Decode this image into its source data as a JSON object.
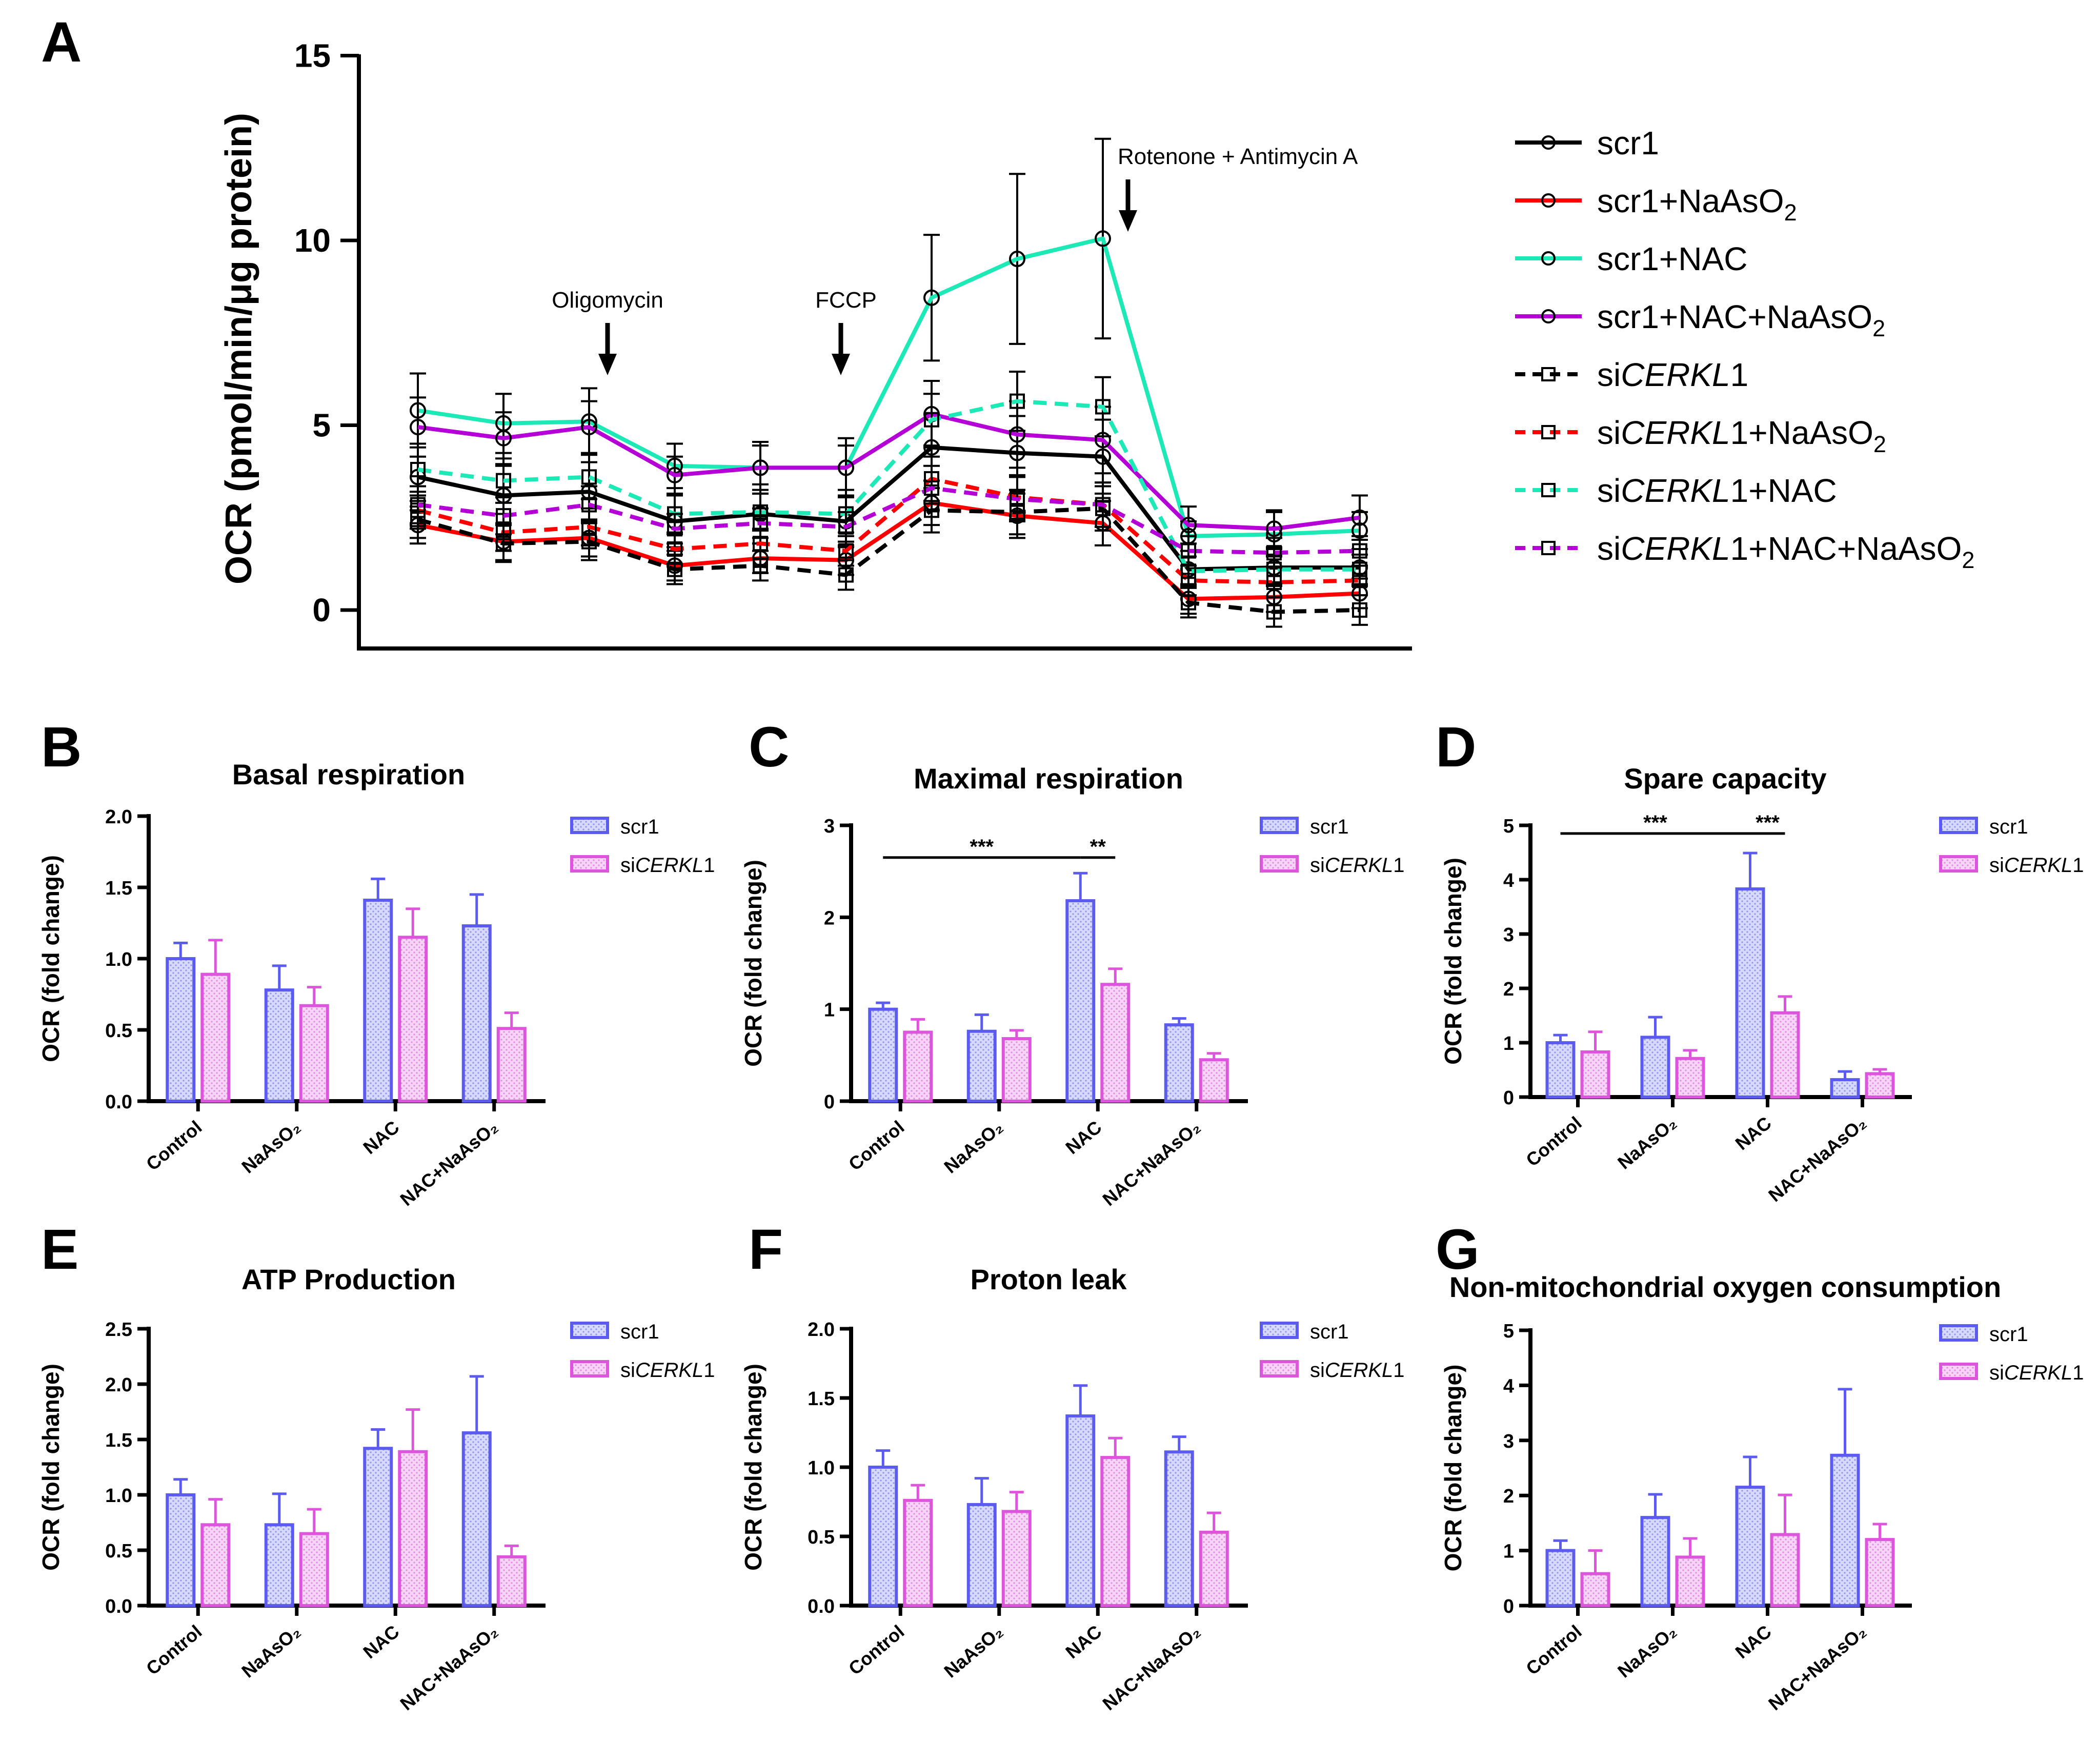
{
  "chart_data": [
    {
      "panel": "A",
      "type": "line",
      "ylabel": "OCR (pmol/min/μg protein)",
      "ylim": [
        -1,
        15
      ],
      "yticks": [
        0,
        5,
        10,
        15
      ],
      "x": [
        1,
        2,
        3,
        4,
        5,
        6,
        7,
        8,
        9,
        10,
        11,
        12
      ],
      "annotations": [
        {
          "label": "Oligomycin",
          "after_point": 3
        },
        {
          "label": "FCCP",
          "after_point": 6
        },
        {
          "label": "Rotenone + Antimycin A",
          "after_point": 9
        }
      ],
      "series": [
        {
          "name": "scr1",
          "color": "#000000",
          "dash": false,
          "marker": "circle",
          "values": [
            3.6,
            3.1,
            3.2,
            2.4,
            2.6,
            2.4,
            4.4,
            4.25,
            4.15,
            1.1,
            1.15,
            1.15
          ],
          "errors": [
            0.9,
            0.8,
            0.8,
            0.7,
            0.8,
            0.7,
            0.9,
            1.0,
            1.0,
            0.5,
            0.5,
            0.5
          ]
        },
        {
          "name": "scr1+NaAsO₂",
          "color": "#ff0000",
          "dash": false,
          "marker": "circle",
          "values": [
            2.3,
            1.85,
            1.95,
            1.2,
            1.4,
            1.35,
            2.9,
            2.55,
            2.35,
            0.3,
            0.35,
            0.45
          ],
          "errors": [
            0.5,
            0.5,
            0.5,
            0.4,
            0.4,
            0.4,
            0.6,
            0.6,
            0.6,
            0.4,
            0.4,
            0.4
          ]
        },
        {
          "name": "scr1+NAC",
          "color": "#1de9b6",
          "dash": false,
          "marker": "circle",
          "values": [
            5.4,
            5.05,
            5.1,
            3.9,
            3.85,
            3.85,
            8.45,
            9.5,
            10.05,
            2.0,
            2.05,
            2.15
          ],
          "errors": [
            1.0,
            0.8,
            0.9,
            0.6,
            0.7,
            0.8,
            1.7,
            2.3,
            2.7,
            0.4,
            0.6,
            0.5
          ]
        },
        {
          "name": "scr1+NAC+NaAsO₂",
          "color": "#b400d6",
          "dash": false,
          "marker": "circle",
          "values": [
            4.95,
            4.65,
            4.95,
            3.65,
            3.85,
            3.85,
            5.3,
            4.75,
            4.6,
            2.3,
            2.2,
            2.5
          ],
          "errors": [
            0.8,
            0.7,
            0.7,
            0.5,
            0.6,
            0.6,
            0.9,
            0.9,
            0.9,
            0.5,
            0.5,
            0.6
          ]
        },
        {
          "name": "siCERKL1",
          "color": "#000000",
          "dash": true,
          "marker": "square",
          "values": [
            2.45,
            1.8,
            1.85,
            1.1,
            1.2,
            0.95,
            2.7,
            2.65,
            2.75,
            0.2,
            -0.05,
            0.0
          ],
          "errors": [
            0.5,
            0.5,
            0.5,
            0.4,
            0.4,
            0.4,
            0.6,
            0.6,
            0.6,
            0.4,
            0.4,
            0.4
          ]
        },
        {
          "name": "siCERKL1+NaAsO₂",
          "color": "#ff0000",
          "dash": true,
          "marker": "square",
          "values": [
            2.7,
            2.1,
            2.25,
            1.65,
            1.8,
            1.6,
            3.55,
            3.05,
            2.85,
            0.8,
            0.75,
            0.8
          ],
          "errors": [
            0.5,
            0.5,
            0.5,
            0.4,
            0.4,
            0.4,
            0.6,
            0.6,
            0.6,
            0.4,
            0.4,
            0.4
          ]
        },
        {
          "name": "siCERKL1+NAC",
          "color": "#1de9b6",
          "dash": true,
          "marker": "square",
          "values": [
            3.8,
            3.5,
            3.6,
            2.6,
            2.65,
            2.6,
            5.15,
            5.65,
            5.5,
            1.05,
            1.1,
            1.1
          ],
          "errors": [
            0.7,
            0.6,
            0.6,
            0.5,
            0.5,
            0.5,
            0.7,
            0.8,
            0.8,
            0.4,
            0.4,
            0.4
          ]
        },
        {
          "name": "siCERKL1+NAC+NaAsO₂",
          "color": "#b400d6",
          "dash": true,
          "marker": "square",
          "values": [
            2.85,
            2.55,
            2.85,
            2.2,
            2.35,
            2.25,
            3.3,
            3.0,
            2.85,
            1.6,
            1.55,
            1.6
          ],
          "errors": [
            0.5,
            0.5,
            0.5,
            0.4,
            0.4,
            0.4,
            0.6,
            0.6,
            0.6,
            0.4,
            0.4,
            0.4
          ]
        }
      ],
      "legend": [
        {
          "pre": "scr1",
          "ital": "",
          "post": "",
          "sub": "",
          "end": ""
        },
        {
          "pre": "scr1+NaAsO",
          "ital": "",
          "post": "",
          "sub": "2",
          "end": ""
        },
        {
          "pre": "scr1+NAC",
          "ital": "",
          "post": "",
          "sub": "",
          "end": ""
        },
        {
          "pre": "scr1+NAC+NaAsO",
          "ital": "",
          "post": "",
          "sub": "2",
          "end": ""
        },
        {
          "pre": "si",
          "ital": "CERKL",
          "post": "1",
          "sub": "",
          "end": ""
        },
        {
          "pre": "si",
          "ital": "CERKL",
          "post": "1+NaAsO",
          "sub": "2",
          "end": ""
        },
        {
          "pre": "si",
          "ital": "CERKL",
          "post": "1+NAC",
          "sub": "",
          "end": ""
        },
        {
          "pre": "si",
          "ital": "CERKL",
          "post": "1+NAC+NaAsO",
          "sub": "2",
          "end": ""
        }
      ]
    },
    {
      "panel": "B",
      "type": "bar",
      "title": "Basal respiration",
      "ylabel": "OCR (fold change)",
      "ylim": [
        0,
        2.0
      ],
      "yticks": [
        "0.0",
        "0.5",
        "1.0",
        "1.5",
        "2.0"
      ],
      "categories": [
        "Control",
        "NaAsO₂",
        "NAC",
        "NAC+NaAsO₂"
      ],
      "series": [
        {
          "name": "scr1",
          "values": [
            1.0,
            0.78,
            1.41,
            1.23
          ],
          "errors": [
            0.11,
            0.17,
            0.15,
            0.22
          ]
        },
        {
          "name": "siCERKL1",
          "values": [
            0.89,
            0.67,
            1.15,
            0.51
          ],
          "errors": [
            0.24,
            0.13,
            0.2,
            0.11
          ]
        }
      ],
      "significance": []
    },
    {
      "panel": "C",
      "type": "bar",
      "title": "Maximal respiration",
      "ylabel": "OCR (fold change)",
      "ylim": [
        0,
        3
      ],
      "yticks": [
        "0",
        "1",
        "2",
        "3"
      ],
      "categories": [
        "Control",
        "NaAsO₂",
        "NAC",
        "NAC+NaAsO₂"
      ],
      "series": [
        {
          "name": "scr1",
          "values": [
            1.0,
            0.76,
            2.18,
            0.83
          ],
          "errors": [
            0.07,
            0.18,
            0.3,
            0.07
          ]
        },
        {
          "name": "siCERKL1",
          "values": [
            0.75,
            0.68,
            1.27,
            0.45
          ],
          "errors": [
            0.14,
            0.09,
            0.17,
            0.07
          ]
        }
      ],
      "significance": [
        {
          "label": "***",
          "from": [
            0,
            0
          ],
          "to": [
            2,
            0
          ],
          "y": 2.65
        },
        {
          "label": "**",
          "from": [
            2,
            0
          ],
          "to": [
            2,
            1
          ],
          "y": 2.65
        }
      ]
    },
    {
      "panel": "D",
      "type": "bar",
      "title": "Spare capacity",
      "ylabel": "OCR (fold change)",
      "ylim": [
        0,
        5
      ],
      "yticks": [
        "0",
        "1",
        "2",
        "3",
        "4",
        "5"
      ],
      "categories": [
        "Control",
        "NaAsO₂",
        "NAC",
        "NAC+NaAsO₂"
      ],
      "series": [
        {
          "name": "scr1",
          "values": [
            1.0,
            1.1,
            3.83,
            0.32
          ],
          "errors": [
            0.14,
            0.37,
            0.66,
            0.15
          ]
        },
        {
          "name": "siCERKL1",
          "values": [
            0.83,
            0.71,
            1.55,
            0.43
          ],
          "errors": [
            0.37,
            0.15,
            0.3,
            0.08
          ]
        }
      ],
      "significance": [
        {
          "label": "***",
          "from": [
            0,
            0
          ],
          "to": [
            2,
            0
          ],
          "y": 4.85
        },
        {
          "label": "***",
          "from": [
            2,
            0
          ],
          "to": [
            2,
            1
          ],
          "y": 4.85
        }
      ]
    },
    {
      "panel": "E",
      "type": "bar",
      "title": "ATP Production",
      "ylabel": "OCR (fold change)",
      "ylim": [
        0,
        2.5
      ],
      "yticks": [
        "0.0",
        "0.5",
        "1.0",
        "1.5",
        "2.0",
        "2.5"
      ],
      "categories": [
        "Control",
        "NaAsO₂",
        "NAC",
        "NAC+NaAsO₂"
      ],
      "series": [
        {
          "name": "scr1",
          "values": [
            1.0,
            0.73,
            1.42,
            1.56
          ],
          "errors": [
            0.14,
            0.28,
            0.17,
            0.51
          ]
        },
        {
          "name": "siCERKL1",
          "values": [
            0.73,
            0.65,
            1.39,
            0.44
          ],
          "errors": [
            0.23,
            0.22,
            0.38,
            0.1
          ]
        }
      ],
      "significance": []
    },
    {
      "panel": "F",
      "type": "bar",
      "title": "Proton leak",
      "ylabel": "OCR (fold change)",
      "ylim": [
        0,
        2.0
      ],
      "yticks": [
        "0.0",
        "0.5",
        "1.0",
        "1.5",
        "2.0"
      ],
      "categories": [
        "Control",
        "NaAsO₂",
        "NAC",
        "NAC+NaAsO₂"
      ],
      "series": [
        {
          "name": "scr1",
          "values": [
            1.0,
            0.73,
            1.37,
            1.11
          ],
          "errors": [
            0.12,
            0.19,
            0.22,
            0.11
          ]
        },
        {
          "name": "siCERKL1",
          "values": [
            0.76,
            0.68,
            1.07,
            0.53
          ],
          "errors": [
            0.11,
            0.14,
            0.14,
            0.14
          ]
        }
      ],
      "significance": []
    },
    {
      "panel": "G",
      "type": "bar",
      "title": "Non-mitochondrial oxygen consumption",
      "ylabel": "OCR (fold change)",
      "ylim": [
        0,
        5
      ],
      "yticks": [
        "0",
        "1",
        "2",
        "3",
        "4",
        "5"
      ],
      "categories": [
        "Control",
        "NaAsO₂",
        "NAC",
        "NAC+NaAsO₂"
      ],
      "series": [
        {
          "name": "scr1",
          "values": [
            1.0,
            1.6,
            2.15,
            2.73
          ],
          "errors": [
            0.18,
            0.42,
            0.55,
            1.2
          ]
        },
        {
          "name": "siCERKL1",
          "values": [
            0.58,
            0.88,
            1.29,
            1.2
          ],
          "errors": [
            0.42,
            0.34,
            0.72,
            0.28
          ]
        }
      ],
      "significance": []
    }
  ],
  "bar_legend": [
    {
      "pre": "scr1",
      "ital": "",
      "post": ""
    },
    {
      "pre": "si",
      "ital": "CERKL",
      "post": "1"
    }
  ],
  "colors": {
    "scr1_bar": "#5b5bf0",
    "sicerkl_bar": "#dd55dd"
  }
}
